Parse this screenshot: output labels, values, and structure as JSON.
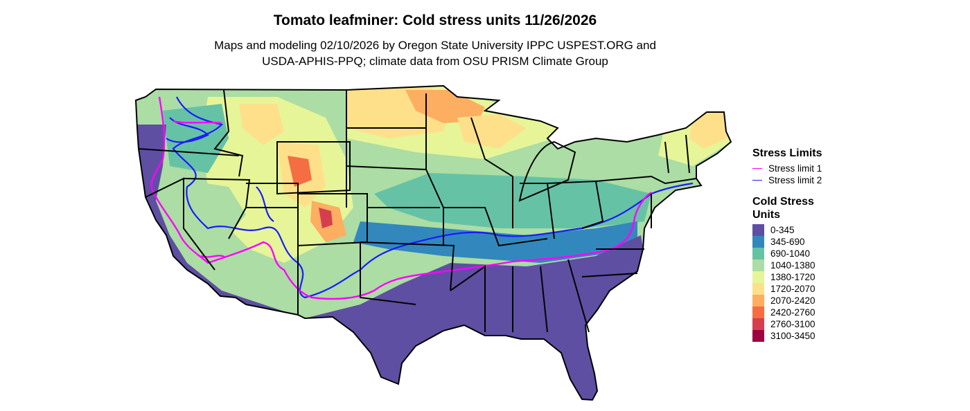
{
  "header": {
    "title": "Tomato leafminer: Cold stress units 11/26/2026",
    "subtitle_line1": "Maps and modeling 02/10/2026 by Oregon State University IPPC USPEST.ORG and",
    "subtitle_line2": "USDA-APHIS-PPQ; climate data from OSU PRISM Climate Group"
  },
  "legend": {
    "limits_title": "Stress Limits",
    "limits": [
      {
        "label": "Stress limit 1",
        "color": "#ff00ff"
      },
      {
        "label": "Stress limit 2",
        "color": "#1a1aff"
      }
    ],
    "units_title_line1": "Cold Stress",
    "units_title_line2": "Units",
    "classes": [
      {
        "label": "0-345",
        "color": "#5e4fa2"
      },
      {
        "label": "345-690",
        "color": "#3288bd"
      },
      {
        "label": "690-1040",
        "color": "#66c2a5"
      },
      {
        "label": "1040-1380",
        "color": "#abdda4"
      },
      {
        "label": "1380-1720",
        "color": "#e6f598"
      },
      {
        "label": "1720-2070",
        "color": "#fee08b"
      },
      {
        "label": "2070-2420",
        "color": "#fdae61"
      },
      {
        "label": "2420-2760",
        "color": "#f46d43"
      },
      {
        "label": "2760-3100",
        "color": "#d53e4f"
      },
      {
        "label": "3100-3450",
        "color": "#9e0142"
      }
    ]
  }
}
